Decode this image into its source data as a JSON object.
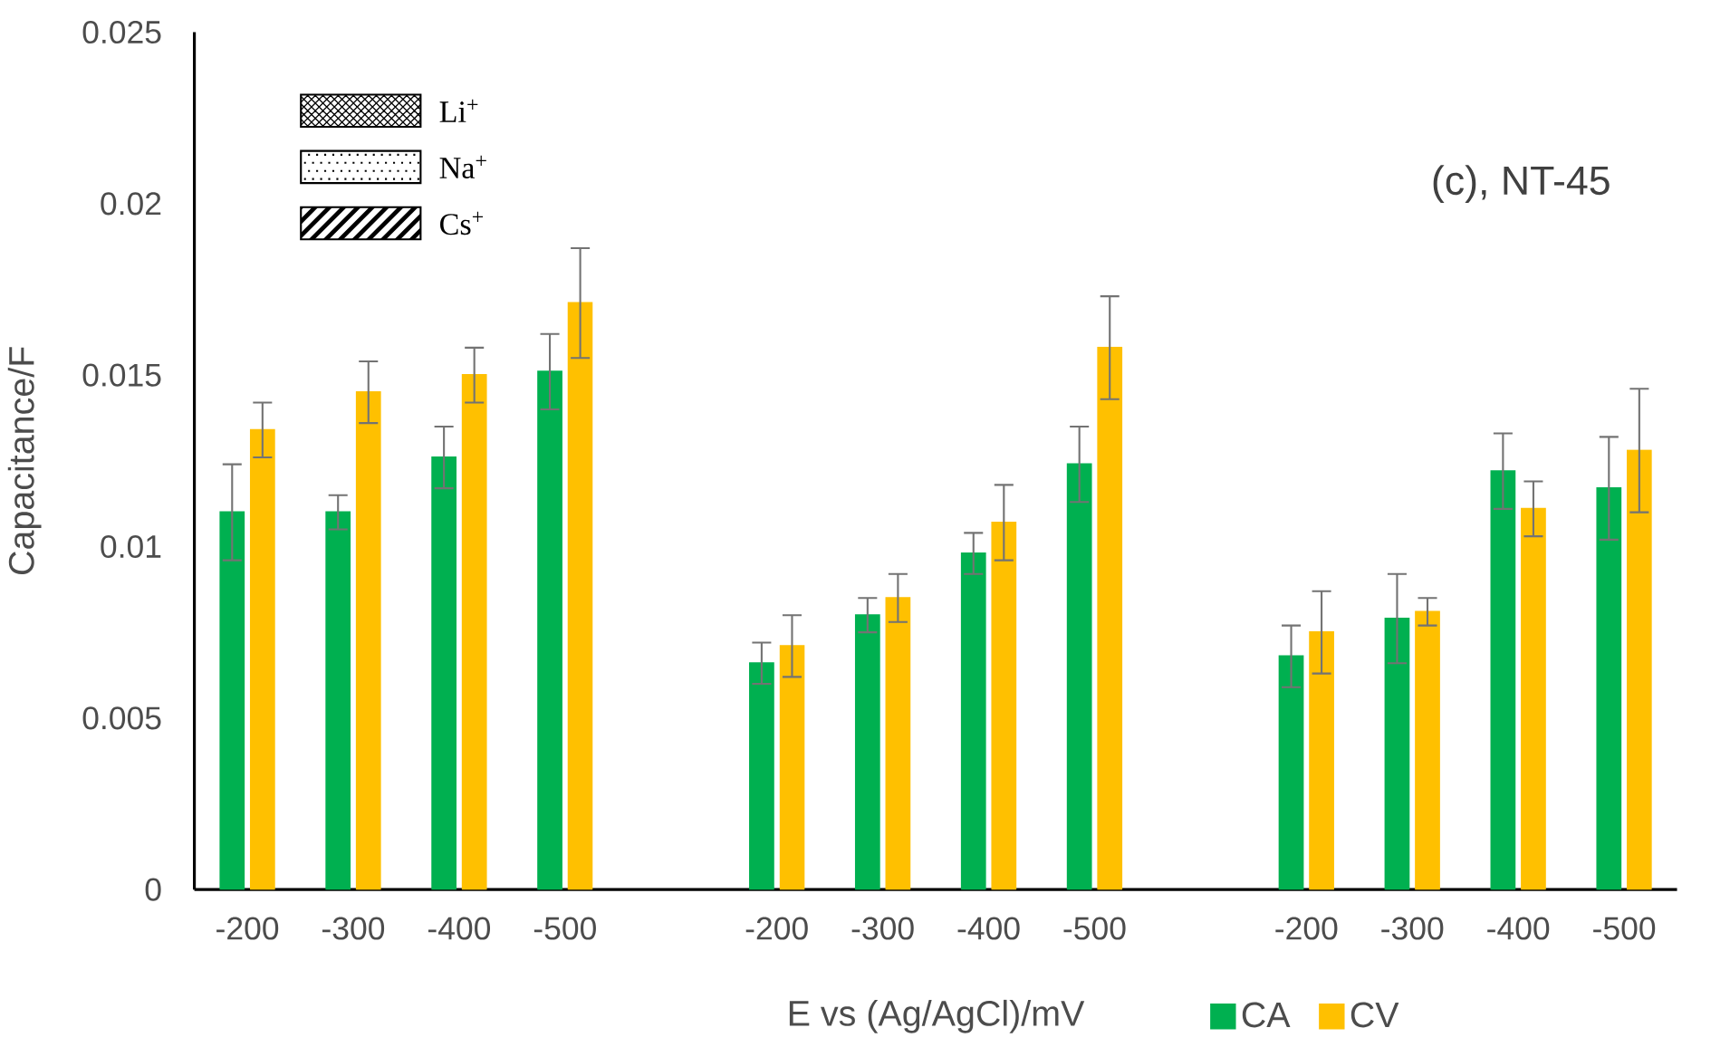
{
  "chart_data": {
    "type": "bar",
    "xlabel": "E vs (Ag/AgCl)/mV",
    "ylabel": "Capacitance/F",
    "categories": [
      "-200",
      "-300",
      "-400",
      "-500",
      null,
      "-200",
      "-300",
      "-400",
      "-500",
      null,
      "-200",
      "-300",
      "-400",
      "-500"
    ],
    "series": [
      {
        "name": "CA",
        "color": "#00b050",
        "values": [
          0.011,
          0.011,
          0.0126,
          0.0151,
          null,
          0.0066,
          0.008,
          0.0098,
          0.0124,
          null,
          0.0068,
          0.0079,
          0.0122,
          0.0117
        ],
        "errors": [
          0.0014,
          0.0005,
          0.0009,
          0.0011,
          null,
          0.0006,
          0.0005,
          0.0006,
          0.0011,
          null,
          0.0009,
          0.0013,
          0.0011,
          0.0015
        ]
      },
      {
        "name": "CV",
        "color": "#ffc000",
        "values": [
          0.0134,
          0.0145,
          0.015,
          0.0171,
          null,
          0.0071,
          0.0085,
          0.0107,
          0.0158,
          null,
          0.0075,
          0.0081,
          0.0111,
          0.0128
        ],
        "errors": [
          0.0008,
          0.0009,
          0.0008,
          0.0016,
          null,
          0.0009,
          0.0007,
          0.0011,
          0.0015,
          null,
          0.0012,
          0.0004,
          0.0008,
          0.0018
        ]
      }
    ],
    "annotations": [
      "Li$^{+}$",
      "Na$^{+}$",
      "Cs$^{+}$",
      "(c), NT-45"
    ],
    "ylim": [
      0,
      0.025
    ],
    "yticks": [
      0,
      0.005,
      0.01,
      0.015,
      0.02,
      0.025
    ],
    "legend": "bottom"
  }
}
